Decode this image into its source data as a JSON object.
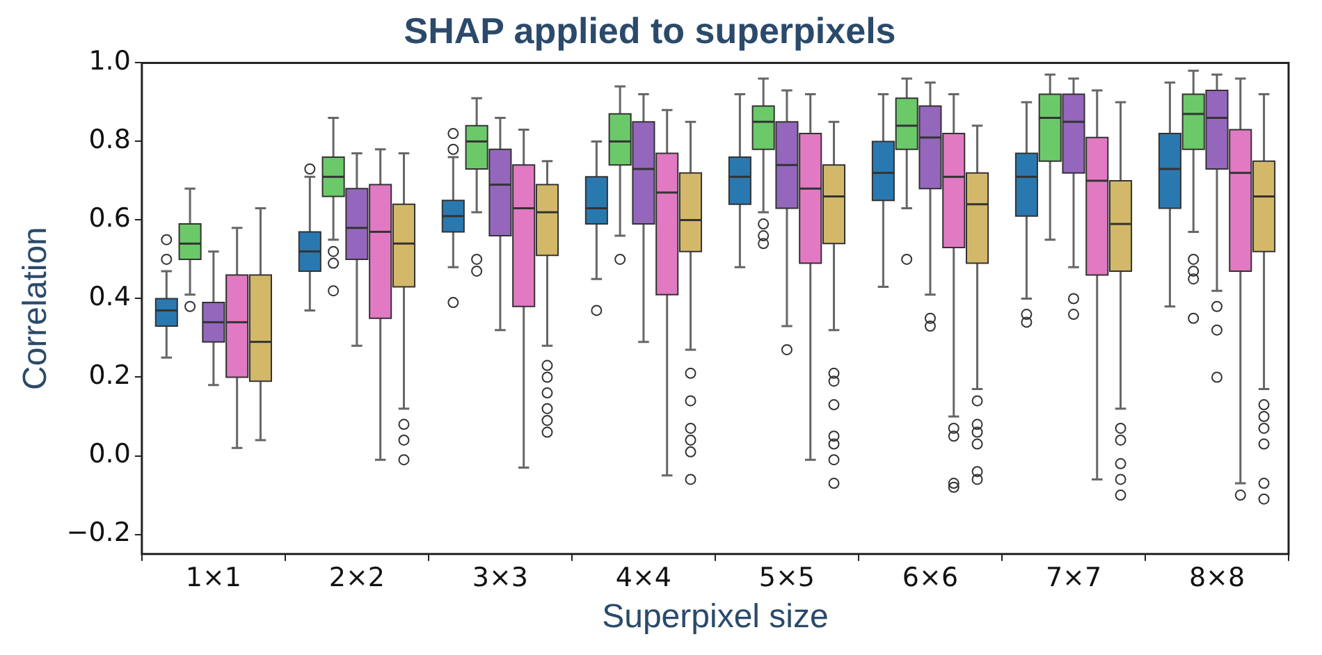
{
  "chart_data": {
    "type": "box",
    "title": "SHAP applied to superpixels",
    "xlabel": "Superpixel size",
    "ylabel": "Correlation",
    "categories": [
      "1×1",
      "2×2",
      "3×3",
      "4×4",
      "5×5",
      "6×6",
      "7×7",
      "8×8"
    ],
    "ylim": [
      -0.25,
      1.0
    ],
    "yticks": [
      {
        "value": -0.2,
        "label": "−0.2"
      },
      {
        "value": 0,
        "label": "0.0"
      },
      {
        "value": 0.2,
        "label": "0.2"
      },
      {
        "value": 0.4,
        "label": "0.4"
      },
      {
        "value": 0.6,
        "label": "0.6"
      },
      {
        "value": 0.8,
        "label": "0.8"
      },
      {
        "value": 1,
        "label": "1.0"
      }
    ],
    "series": [
      {
        "color": "#2a78b0",
        "boxes": [
          {
            "low": 0.25,
            "q1": 0.33,
            "median": 0.37,
            "q3": 0.4,
            "high": 0.47,
            "outliers": [
              0.55,
              0.5
            ]
          },
          {
            "low": 0.37,
            "q1": 0.47,
            "median": 0.52,
            "q3": 0.57,
            "high": 0.71,
            "outliers": [
              0.73
            ]
          },
          {
            "low": 0.48,
            "q1": 0.57,
            "median": 0.61,
            "q3": 0.65,
            "high": 0.76,
            "outliers": [
              0.82,
              0.78,
              0.39
            ]
          },
          {
            "low": 0.45,
            "q1": 0.59,
            "median": 0.63,
            "q3": 0.71,
            "high": 0.8,
            "outliers": [
              0.37
            ]
          },
          {
            "low": 0.48,
            "q1": 0.64,
            "median": 0.71,
            "q3": 0.76,
            "high": 0.92
          },
          {
            "low": 0.43,
            "q1": 0.65,
            "median": 0.72,
            "q3": 0.8,
            "high": 0.92
          },
          {
            "low": 0.4,
            "q1": 0.61,
            "median": 0.71,
            "q3": 0.77,
            "high": 0.9,
            "outliers": [
              0.36,
              0.34
            ]
          },
          {
            "low": 0.38,
            "q1": 0.63,
            "median": 0.73,
            "q3": 0.82,
            "high": 0.95
          }
        ]
      },
      {
        "color": "#6cc96a",
        "boxes": [
          {
            "low": 0.41,
            "q1": 0.5,
            "median": 0.54,
            "q3": 0.59,
            "high": 0.68,
            "outliers": [
              0.38
            ]
          },
          {
            "low": 0.55,
            "q1": 0.66,
            "median": 0.71,
            "q3": 0.76,
            "high": 0.86,
            "outliers": [
              0.52,
              0.49,
              0.42
            ]
          },
          {
            "low": 0.62,
            "q1": 0.73,
            "median": 0.8,
            "q3": 0.84,
            "high": 0.91,
            "outliers": [
              0.5,
              0.47
            ]
          },
          {
            "low": 0.56,
            "q1": 0.74,
            "median": 0.8,
            "q3": 0.87,
            "high": 0.94,
            "outliers": [
              0.5
            ]
          },
          {
            "low": 0.62,
            "q1": 0.78,
            "median": 0.85,
            "q3": 0.89,
            "high": 0.96,
            "outliers": [
              0.59,
              0.56,
              0.54
            ]
          },
          {
            "low": 0.63,
            "q1": 0.78,
            "median": 0.84,
            "q3": 0.91,
            "high": 0.96,
            "outliers": [
              0.5
            ]
          },
          {
            "low": 0.55,
            "q1": 0.75,
            "median": 0.86,
            "q3": 0.92,
            "high": 0.97
          },
          {
            "low": 0.57,
            "q1": 0.78,
            "median": 0.87,
            "q3": 0.92,
            "high": 0.98,
            "outliers": [
              0.5,
              0.47,
              0.45,
              0.35
            ]
          }
        ]
      },
      {
        "color": "#9467bd",
        "boxes": [
          {
            "low": 0.18,
            "q1": 0.29,
            "median": 0.34,
            "q3": 0.39,
            "high": 0.52
          },
          {
            "low": 0.28,
            "q1": 0.5,
            "median": 0.58,
            "q3": 0.68,
            "high": 0.77
          },
          {
            "low": 0.32,
            "q1": 0.56,
            "median": 0.69,
            "q3": 0.78,
            "high": 0.86
          },
          {
            "low": 0.29,
            "q1": 0.59,
            "median": 0.73,
            "q3": 0.85,
            "high": 0.92
          },
          {
            "low": 0.33,
            "q1": 0.63,
            "median": 0.74,
            "q3": 0.85,
            "high": 0.93,
            "outliers": [
              0.27
            ]
          },
          {
            "low": 0.41,
            "q1": 0.68,
            "median": 0.81,
            "q3": 0.89,
            "high": 0.95,
            "outliers": [
              0.35,
              0.33
            ]
          },
          {
            "low": 0.48,
            "q1": 0.72,
            "median": 0.85,
            "q3": 0.92,
            "high": 0.96,
            "outliers": [
              0.4,
              0.36
            ]
          },
          {
            "low": 0.42,
            "q1": 0.73,
            "median": 0.86,
            "q3": 0.93,
            "high": 0.97,
            "outliers": [
              0.38,
              0.32,
              0.2
            ]
          }
        ]
      },
      {
        "color": "#e17ac2",
        "boxes": [
          {
            "low": 0.02,
            "q1": 0.2,
            "median": 0.34,
            "q3": 0.46,
            "high": 0.58
          },
          {
            "low": -0.01,
            "q1": 0.35,
            "median": 0.57,
            "q3": 0.69,
            "high": 0.78
          },
          {
            "low": -0.03,
            "q1": 0.38,
            "median": 0.63,
            "q3": 0.74,
            "high": 0.83
          },
          {
            "low": -0.05,
            "q1": 0.41,
            "median": 0.67,
            "q3": 0.77,
            "high": 0.88
          },
          {
            "low": -0.01,
            "q1": 0.49,
            "median": 0.68,
            "q3": 0.82,
            "high": 0.92
          },
          {
            "low": 0.1,
            "q1": 0.53,
            "median": 0.71,
            "q3": 0.82,
            "high": 0.92,
            "outliers": [
              0.07,
              0.05,
              -0.07,
              -0.08
            ]
          },
          {
            "low": -0.06,
            "q1": 0.46,
            "median": 0.7,
            "q3": 0.81,
            "high": 0.93
          },
          {
            "low": -0.07,
            "q1": 0.47,
            "median": 0.72,
            "q3": 0.83,
            "high": 0.96,
            "outliers": [
              -0.1
            ]
          }
        ]
      },
      {
        "color": "#d4b86a",
        "boxes": [
          {
            "low": 0.04,
            "q1": 0.19,
            "median": 0.29,
            "q3": 0.46,
            "high": 0.63
          },
          {
            "low": 0.12,
            "q1": 0.43,
            "median": 0.54,
            "q3": 0.64,
            "high": 0.77,
            "outliers": [
              0.08,
              0.04,
              -0.01
            ]
          },
          {
            "low": 0.28,
            "q1": 0.51,
            "median": 0.62,
            "q3": 0.69,
            "high": 0.75,
            "outliers": [
              0.23,
              0.2,
              0.16,
              0.12,
              0.09,
              0.06
            ]
          },
          {
            "low": 0.27,
            "q1": 0.52,
            "median": 0.6,
            "q3": 0.72,
            "high": 0.85,
            "outliers": [
              0.21,
              0.14,
              0.07,
              0.04,
              0.01,
              -0.06
            ]
          },
          {
            "low": 0.32,
            "q1": 0.54,
            "median": 0.66,
            "q3": 0.74,
            "high": 0.85,
            "outliers": [
              0.21,
              0.19,
              0.13,
              0.05,
              0.03,
              -0.01,
              -0.07
            ]
          },
          {
            "low": 0.17,
            "q1": 0.49,
            "median": 0.64,
            "q3": 0.72,
            "high": 0.84,
            "outliers": [
              0.14,
              0.08,
              0.06,
              0.03,
              -0.04,
              -0.06
            ]
          },
          {
            "low": 0.12,
            "q1": 0.47,
            "median": 0.59,
            "q3": 0.7,
            "high": 0.9,
            "outliers": [
              0.07,
              0.04,
              -0.02,
              -0.06,
              -0.1
            ]
          },
          {
            "low": 0.17,
            "q1": 0.52,
            "median": 0.66,
            "q3": 0.75,
            "high": 0.92,
            "outliers": [
              0.13,
              0.1,
              0.07,
              0.03,
              -0.07,
              -0.11
            ]
          }
        ]
      }
    ]
  }
}
